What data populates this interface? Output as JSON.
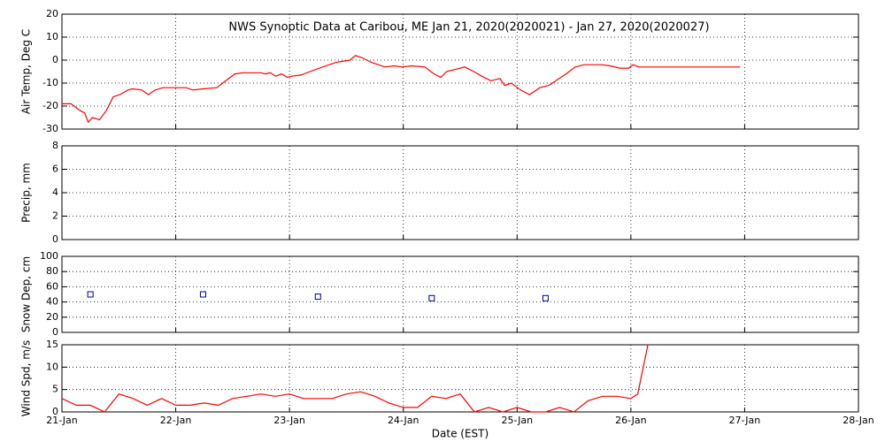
{
  "chart_data": [
    {
      "type": "line",
      "title": "NWS Synoptic Data at Caribou, ME   Jan 21, 2020(2020021) - Jan 27, 2020(2020027)",
      "ylabel": "Air Temp, Deg C",
      "xlim": [
        0,
        7
      ],
      "ylim": [
        -30,
        20
      ],
      "yticks": [
        -30,
        -20,
        -10,
        0,
        10,
        20
      ],
      "grid": true,
      "series": [
        {
          "color": "#ff0000",
          "x": [
            0,
            0.08,
            0.16,
            0.2,
            0.23,
            0.27,
            0.33,
            0.39,
            0.45,
            0.51,
            0.58,
            0.62,
            0.7,
            0.76,
            0.82,
            0.89,
            1.01,
            1.09,
            1.15,
            1.24,
            1.36,
            1.44,
            1.52,
            1.59,
            1.75,
            1.79,
            1.83,
            1.88,
            1.93,
            1.98,
            2.02,
            2.1,
            2.18,
            2.29,
            2.41,
            2.53,
            2.58,
            2.64,
            2.72,
            2.84,
            2.92,
            2.99,
            3.07,
            3.19,
            3.27,
            3.33,
            3.38,
            3.46,
            3.54,
            3.62,
            3.69,
            3.77,
            3.85,
            3.89,
            3.95,
            4.03,
            4.11,
            4.2,
            4.28,
            4.37,
            4.43,
            4.51,
            4.59,
            4.74,
            4.82,
            4.9,
            4.98,
            5.02,
            5.07,
            5.17,
            5.96
          ],
          "values": [
            -19,
            -19,
            -22,
            -23,
            -27,
            -25,
            -26,
            -22,
            -16,
            -15,
            -13,
            -12.5,
            -13,
            -15,
            -13,
            -12,
            -12,
            -12,
            -13,
            -12.5,
            -12,
            -9,
            -6,
            -5.5,
            -5.5,
            -6,
            -5.5,
            -7,
            -6,
            -7.5,
            -7,
            -6.5,
            -5,
            -3,
            -1,
            0,
            2,
            1,
            -1,
            -3,
            -2.5,
            -3,
            -2.5,
            -3,
            -6,
            -7.5,
            -5,
            -4,
            -3,
            -5,
            -7,
            -9,
            -8,
            -11,
            -10,
            -13,
            -15,
            -12,
            -11,
            -8,
            -6,
            -3,
            -2,
            -2,
            -2.5,
            -3.5,
            -3.5,
            -2,
            -3,
            -3,
            -3
          ]
        }
      ]
    },
    {
      "type": "line",
      "ylabel": "Precip, mm",
      "xlim": [
        0,
        7
      ],
      "ylim": [
        0,
        8
      ],
      "yticks": [
        0,
        2,
        4,
        6,
        8
      ],
      "grid": true,
      "series": [
        {
          "color": "#ff0000",
          "x": [],
          "values": []
        }
      ]
    },
    {
      "type": "scatter",
      "ylabel": "Snow Dep, cm",
      "xlim": [
        0,
        7
      ],
      "ylim": [
        0,
        100
      ],
      "yticks": [
        0,
        20,
        40,
        60,
        80,
        100
      ],
      "grid": true,
      "series": [
        {
          "color": "#00008b",
          "x": [
            0.25,
            1.24,
            2.25,
            3.25,
            4.25
          ],
          "values": [
            50,
            50,
            47,
            45,
            45
          ]
        }
      ]
    },
    {
      "type": "line",
      "ylabel": "Wind Spd, m/s",
      "xlabel": "Date (EST)",
      "xlim": [
        0,
        7
      ],
      "ylim": [
        0,
        15
      ],
      "yticks": [
        0,
        5,
        10,
        15
      ],
      "grid": true,
      "xticks": [
        {
          "value": 0,
          "label": "21-Jan"
        },
        {
          "value": 1,
          "label": "22-Jan"
        },
        {
          "value": 2,
          "label": "23-Jan"
        },
        {
          "value": 3,
          "label": "24-Jan"
        },
        {
          "value": 4,
          "label": "25-Jan"
        },
        {
          "value": 5,
          "label": "26-Jan"
        },
        {
          "value": 6,
          "label": "27-Jan"
        },
        {
          "value": 7,
          "label": "28-Jan"
        }
      ],
      "series": [
        {
          "color": "#ff0000",
          "x": [
            0,
            0.125,
            0.25,
            0.375,
            0.5,
            0.625,
            0.75,
            0.875,
            1,
            1.125,
            1.25,
            1.375,
            1.5,
            1.625,
            1.75,
            1.875,
            2,
            2.125,
            2.25,
            2.375,
            2.5,
            2.625,
            2.75,
            2.875,
            3,
            3.125,
            3.25,
            3.375,
            3.5,
            3.625,
            3.75,
            3.875,
            4,
            4.125,
            4.25,
            4.375,
            4.5,
            4.625,
            4.75,
            4.875,
            5,
            5.06,
            5.15
          ],
          "values": [
            3,
            1.5,
            1.5,
            0,
            4,
            3,
            1.5,
            3,
            1.5,
            1.5,
            2,
            1.5,
            3,
            3.5,
            4,
            3.5,
            4,
            3,
            3,
            3,
            4,
            4.5,
            3.5,
            2,
            1,
            1,
            3.5,
            3,
            4,
            0,
            1,
            0,
            1,
            0,
            0,
            1,
            0,
            2.5,
            3.5,
            3.5,
            3,
            4,
            15
          ]
        }
      ]
    }
  ]
}
